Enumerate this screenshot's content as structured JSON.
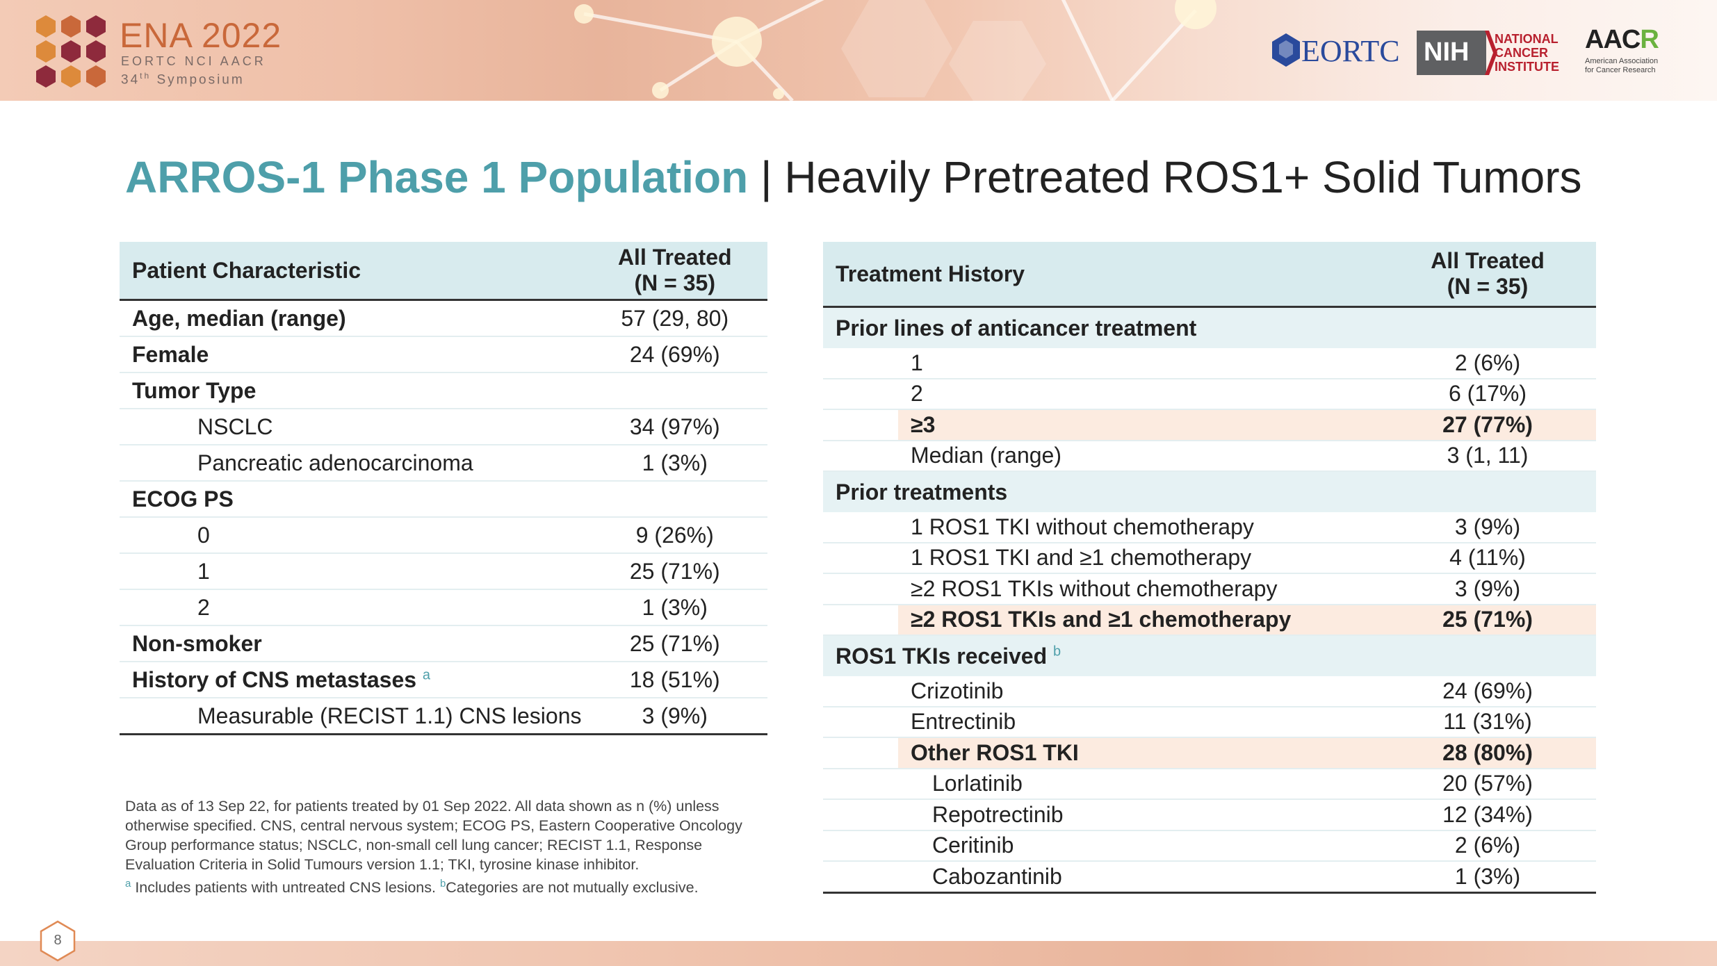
{
  "header": {
    "logo_title": "ENA 2022",
    "logo_orgs": "EORTC NCI AACR",
    "logo_symposium_num": "34",
    "logo_symposium_suffix": "th",
    "logo_symposium_word": "Symposium",
    "eortc": "EORTC",
    "nih": "NIH",
    "nci_name": "NATIONAL\nCANCER\nINSTITUTE",
    "aacr_mark": "AAC",
    "aacr_mark_end": "R",
    "aacr_sub": "American Association\nfor Cancer Research"
  },
  "title": {
    "highlight": "ARROS-1 Phase 1 Population",
    "separator": "|",
    "rest": "Heavily Pretreated ROS1+ Solid Tumors"
  },
  "left_table": {
    "header_col1": "Patient Characteristic",
    "header_col2_line1": "All Treated",
    "header_col2_line2": "(N = 35)",
    "rows": [
      {
        "label": "Age, median (range)",
        "value": "57 (29, 80)"
      },
      {
        "label": "Female",
        "value": "24 (69%)"
      },
      {
        "label": "Tumor Type",
        "value": ""
      },
      {
        "label": "NSCLC",
        "value": "34 (97%)"
      },
      {
        "label": "Pancreatic adenocarcinoma",
        "value": "1 (3%)"
      },
      {
        "label": "ECOG PS",
        "value": ""
      },
      {
        "label": "0",
        "value": "9 (26%)"
      },
      {
        "label": "1",
        "value": "25 (71%)"
      },
      {
        "label": "2",
        "value": "1 (3%)"
      },
      {
        "label": "Non-smoker",
        "value": "25 (71%)"
      },
      {
        "label": "History of CNS metastases",
        "sup": "a",
        "value": "18 (51%)"
      },
      {
        "label": "Measurable (RECIST 1.1) CNS lesions",
        "value": "3 (9%)"
      }
    ]
  },
  "right_table": {
    "header_col1": "Treatment History",
    "header_col2_line1": "All Treated",
    "header_col2_line2": "(N = 35)",
    "sections": [
      {
        "title": "Prior lines of anticancer treatment",
        "rows": [
          {
            "label": "1",
            "value": "2 (6%)"
          },
          {
            "label": "2",
            "value": "6 (17%)"
          },
          {
            "label": "≥3",
            "value": "27 (77%)"
          },
          {
            "label": "Median (range)",
            "value": "3 (1, 11)"
          }
        ]
      },
      {
        "title": "Prior treatments",
        "rows": [
          {
            "label": "1 ROS1 TKI without chemotherapy",
            "value": "3 (9%)"
          },
          {
            "label": "1 ROS1 TKI and ≥1 chemotherapy",
            "value": "4 (11%)"
          },
          {
            "label": "≥2 ROS1 TKIs without chemotherapy",
            "value": "3 (9%)"
          },
          {
            "label": "≥2 ROS1 TKIs and ≥1 chemotherapy",
            "value": "25 (71%)"
          }
        ]
      },
      {
        "title": "ROS1 TKIs received",
        "title_sup": "b",
        "rows": [
          {
            "label": "Crizotinib",
            "value": "24 (69%)"
          },
          {
            "label": "Entrectinib",
            "value": "11 (31%)"
          },
          {
            "label": "Other ROS1 TKI",
            "value": "28 (80%)"
          },
          {
            "label": "Lorlatinib",
            "value": "20 (57%)"
          },
          {
            "label": "Repotrectinib",
            "value": "12 (34%)"
          },
          {
            "label": "Ceritinib",
            "value": "2 (6%)"
          },
          {
            "label": "Cabozantinib",
            "value": "1 (3%)"
          }
        ]
      }
    ]
  },
  "footnote": {
    "main": "Data as of 13 Sep 22, for patients treated by 01 Sep 2022. All data shown as n (%) unless otherwise specified. CNS, central nervous system; ECOG PS, Eastern Cooperative Oncology Group performance status; NSCLC, non-small cell lung cancer;  RECIST 1.1, Response Evaluation Criteria in Solid Tumours version 1.1; TKI, tyrosine kinase inhibitor.",
    "sup_a": "a",
    "note_a": "Includes patients with untreated CNS lesions.",
    "sup_b": "b",
    "note_b": "Categories are not mutually exclusive."
  },
  "page": {
    "number": "8"
  },
  "colors": {
    "accent": "#4e9faa",
    "highlight_row": "#fcebe0",
    "header_fill": "#d8ebee"
  }
}
